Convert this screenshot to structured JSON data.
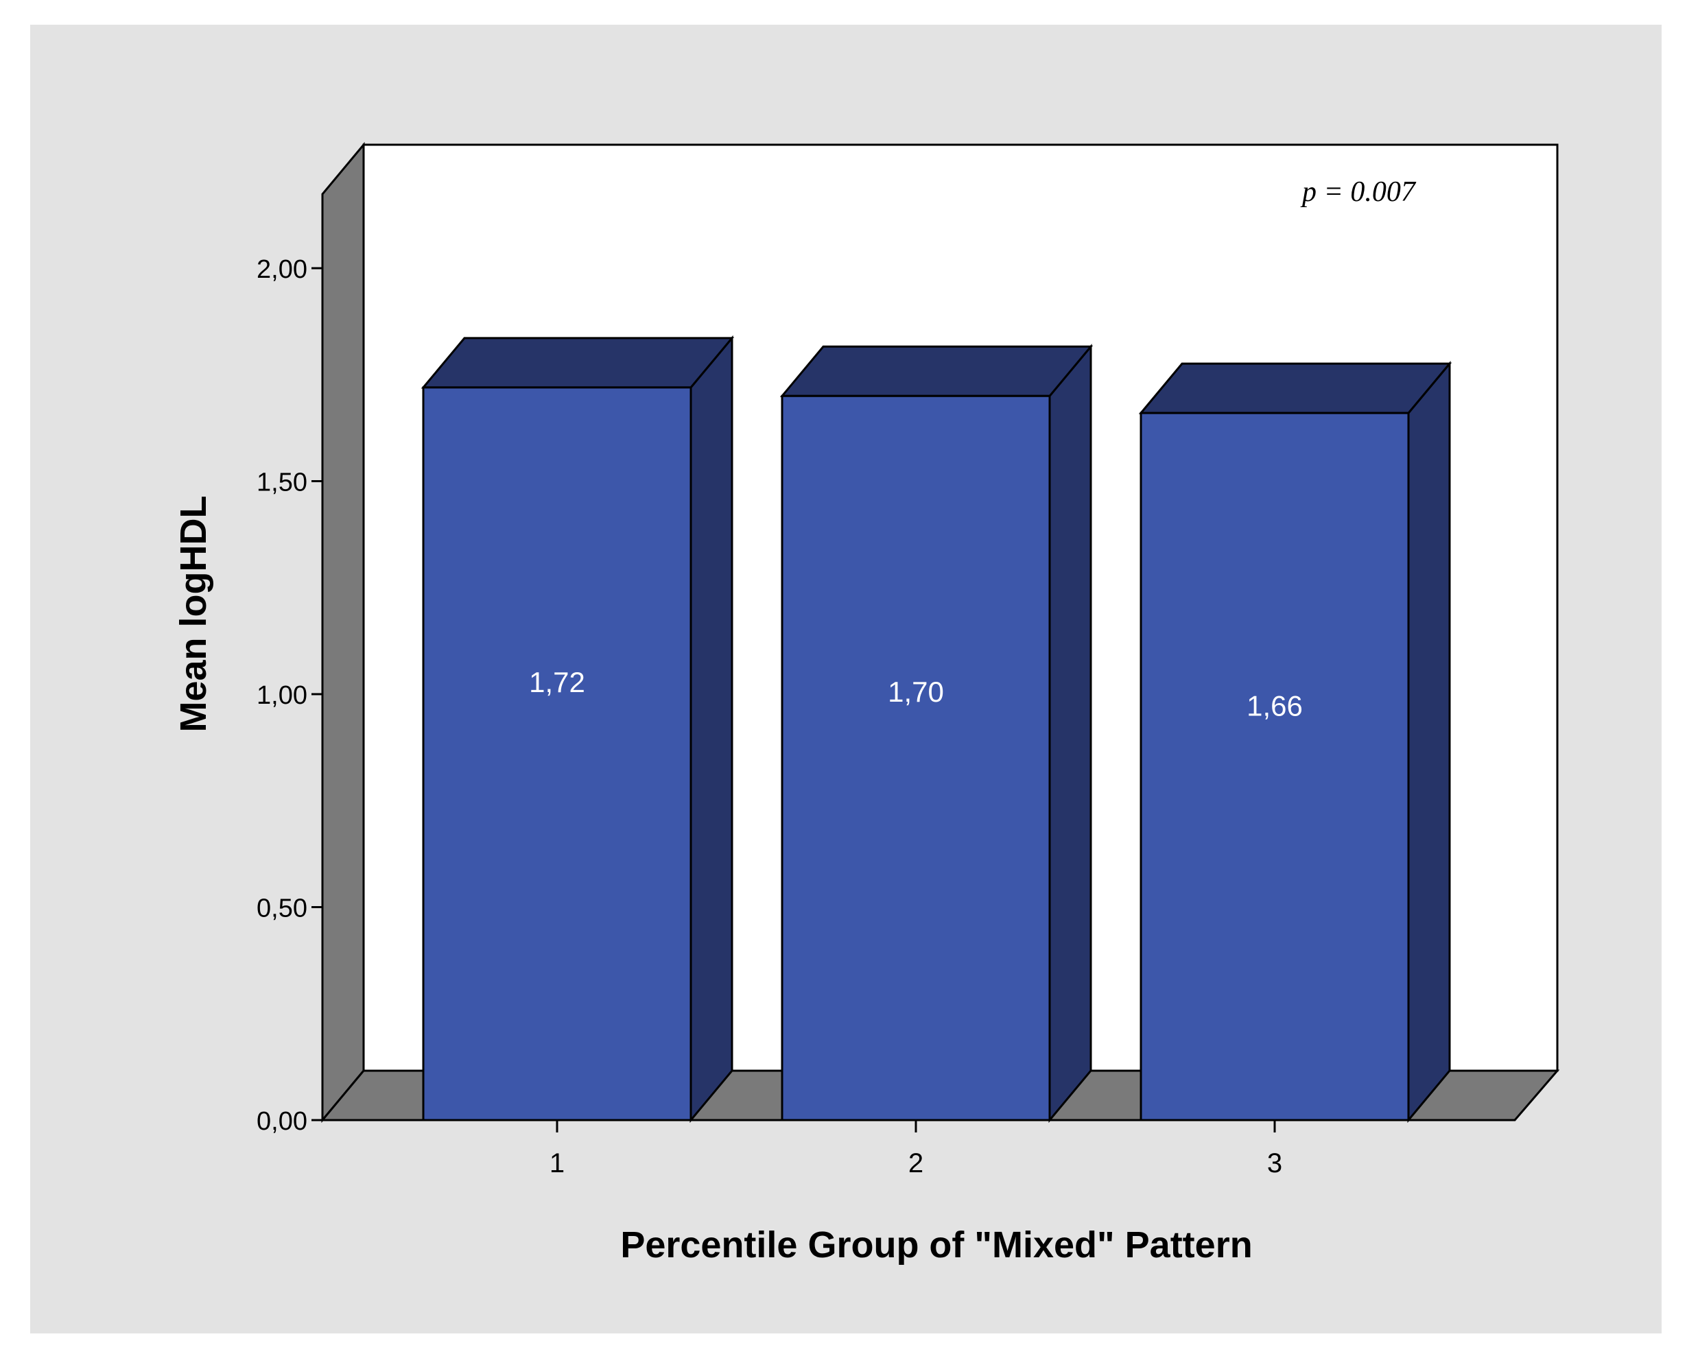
{
  "colors": {
    "page_bg": "#ffffff",
    "chart_bg": "#e3e3e3",
    "plot_bg": "#ffffff",
    "wall": "#7a7a7a",
    "bar_front": "#3d57aa",
    "bar_dark": "#263468",
    "outline": "#000000",
    "bar_label": "#ffffff"
  },
  "chart_data": {
    "type": "bar",
    "style": "3d",
    "categories": [
      "1",
      "2",
      "3"
    ],
    "values": [
      1.72,
      1.7,
      1.66
    ],
    "value_labels": [
      "1,72",
      "1,70",
      "1,66"
    ],
    "title": "",
    "xlabel": "Percentile Group of \"Mixed\" Pattern",
    "ylabel": "Mean logHDL",
    "ylim": [
      0,
      2.0
    ],
    "yticks": [
      0,
      0.5,
      1.0,
      1.5,
      2.0
    ],
    "ytick_labels": [
      "0,00",
      "0,50",
      "1,00",
      "1,50",
      "2,00"
    ],
    "annotation": {
      "label": "p",
      "text": " = 0.007"
    },
    "grid": false,
    "legend": "none"
  }
}
